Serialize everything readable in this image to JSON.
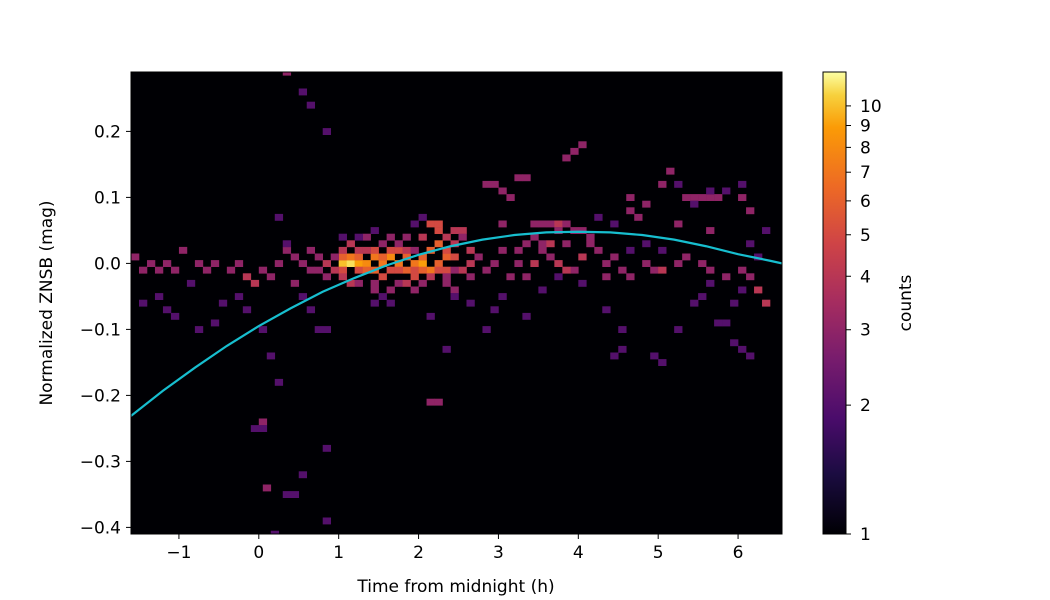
{
  "chart_data": {
    "type": "heatmap",
    "title": "",
    "xlabel": "Time from midnight (h)",
    "ylabel": "Normalized ZNSB (mag)",
    "xlim": [
      -1.6,
      6.55
    ],
    "ylim": [
      -0.41,
      0.29
    ],
    "x_ticks": [
      -1,
      0,
      1,
      2,
      3,
      4,
      5,
      6
    ],
    "x_tick_labels": [
      "−1",
      "0",
      "1",
      "2",
      "3",
      "4",
      "5",
      "6"
    ],
    "y_ticks": [
      -0.4,
      -0.3,
      -0.2,
      -0.1,
      0.0,
      0.1,
      0.2
    ],
    "y_tick_labels": [
      "−0.4",
      "−0.3",
      "−0.2",
      "−0.1",
      "0.0",
      "0.1",
      "0.2"
    ],
    "background_color": "#000004",
    "colormap": "inferno",
    "colorbar": {
      "label": "counts",
      "scale": "log",
      "range": [
        1,
        12
      ],
      "ticks": [
        1,
        2,
        3,
        4,
        5,
        6,
        7,
        8,
        9,
        10
      ],
      "tick_labels": [
        "1",
        "2",
        "3",
        "4",
        "5",
        "6",
        "7",
        "8",
        "9",
        "10"
      ]
    },
    "bin_size": {
      "x": 0.1,
      "y": 0.01
    },
    "bins": [
      [
        1.0,
        0.0,
        10
      ],
      [
        1.1,
        0.0,
        11
      ],
      [
        1.2,
        0.0,
        9
      ],
      [
        1.3,
        0.0,
        8
      ],
      [
        1.4,
        -0.01,
        6
      ],
      [
        1.5,
        0.0,
        7
      ],
      [
        1.6,
        0.01,
        8
      ],
      [
        1.7,
        0.0,
        7
      ],
      [
        1.8,
        -0.01,
        6
      ],
      [
        1.9,
        0.0,
        7
      ],
      [
        2.0,
        0.0,
        9
      ],
      [
        2.1,
        -0.01,
        7
      ],
      [
        2.2,
        0.0,
        6
      ],
      [
        2.3,
        0.01,
        6
      ],
      [
        1.0,
        0.01,
        6
      ],
      [
        1.1,
        0.01,
        7
      ],
      [
        1.2,
        0.01,
        6
      ],
      [
        1.4,
        0.01,
        7
      ],
      [
        1.5,
        0.01,
        6
      ],
      [
        1.8,
        0.01,
        6
      ],
      [
        2.0,
        0.01,
        6
      ],
      [
        2.1,
        0.02,
        6
      ],
      [
        2.3,
        0.02,
        5
      ],
      [
        2.4,
        0.01,
        5
      ],
      [
        2.2,
        0.03,
        6
      ],
      [
        1.0,
        -0.01,
        5
      ],
      [
        1.2,
        -0.01,
        5
      ],
      [
        1.3,
        -0.01,
        6
      ],
      [
        1.6,
        -0.01,
        5
      ],
      [
        1.7,
        -0.01,
        5
      ],
      [
        1.9,
        -0.01,
        5
      ],
      [
        2.0,
        -0.01,
        6
      ],
      [
        2.2,
        -0.01,
        5
      ],
      [
        2.3,
        -0.01,
        5
      ],
      [
        1.5,
        -0.02,
        5
      ],
      [
        1.9,
        -0.02,
        5
      ],
      [
        2.1,
        -0.02,
        4
      ],
      [
        1.6,
        0.02,
        5
      ],
      [
        1.4,
        0.02,
        5
      ],
      [
        1.3,
        0.02,
        4
      ],
      [
        1.7,
        0.02,
        5
      ],
      [
        2.1,
        0.06,
        5
      ],
      [
        2.2,
        0.06,
        5
      ],
      [
        2.2,
        0.05,
        5
      ],
      [
        2.4,
        0.05,
        4
      ],
      [
        2.5,
        0.05,
        4
      ],
      [
        2.3,
        0.04,
        4
      ],
      [
        2.5,
        0.04,
        3
      ],
      [
        2.0,
        0.04,
        4
      ],
      [
        2.4,
        0.03,
        4
      ],
      [
        1.1,
        0.03,
        4
      ],
      [
        1.2,
        0.02,
        4
      ],
      [
        1.0,
        0.02,
        4
      ],
      [
        1.8,
        0.02,
        4
      ],
      [
        1.9,
        0.02,
        3
      ],
      [
        1.5,
        0.03,
        3
      ],
      [
        2.6,
        0.02,
        4
      ],
      [
        2.6,
        0.0,
        4
      ],
      [
        2.7,
        0.01,
        3
      ],
      [
        2.5,
        -0.01,
        4
      ],
      [
        2.6,
        -0.02,
        3
      ],
      [
        0.8,
        0.0,
        4
      ],
      [
        0.9,
        -0.01,
        4
      ],
      [
        0.9,
        0.01,
        3
      ],
      [
        0.7,
        -0.01,
        3
      ],
      [
        0.8,
        -0.02,
        3
      ],
      [
        1.0,
        -0.02,
        4
      ],
      [
        1.1,
        -0.03,
        4
      ],
      [
        1.2,
        -0.03,
        3
      ],
      [
        1.4,
        -0.03,
        3
      ],
      [
        1.7,
        -0.03,
        3
      ],
      [
        1.8,
        -0.03,
        4
      ],
      [
        2.0,
        -0.03,
        3
      ],
      [
        1.4,
        -0.04,
        3
      ],
      [
        1.6,
        -0.04,
        3
      ],
      [
        1.9,
        -0.04,
        3
      ],
      [
        2.3,
        -0.02,
        3
      ],
      [
        2.4,
        -0.01,
        3
      ],
      [
        2.3,
        -0.03,
        3
      ],
      [
        2.4,
        -0.04,
        3
      ],
      [
        1.6,
        0.04,
        3
      ],
      [
        1.3,
        0.04,
        3
      ],
      [
        1.7,
        0.03,
        3
      ],
      [
        1.8,
        0.04,
        3
      ],
      [
        3.0,
        0.06,
        3
      ],
      [
        3.4,
        0.06,
        3
      ],
      [
        3.5,
        0.06,
        3
      ],
      [
        3.6,
        0.06,
        3
      ],
      [
        3.7,
        0.06,
        4
      ],
      [
        3.8,
        0.06,
        3
      ],
      [
        3.7,
        0.05,
        3
      ],
      [
        3.9,
        0.05,
        3
      ],
      [
        4.0,
        0.05,
        3
      ],
      [
        3.3,
        0.03,
        3
      ],
      [
        3.4,
        0.04,
        3
      ],
      [
        3.5,
        0.03,
        3
      ],
      [
        3.6,
        0.03,
        4
      ],
      [
        3.8,
        0.03,
        3
      ],
      [
        3.2,
        0.0,
        3
      ],
      [
        3.4,
        0.0,
        4
      ],
      [
        3.5,
        0.02,
        3
      ],
      [
        3.6,
        0.01,
        3
      ],
      [
        3.7,
        0.0,
        4
      ],
      [
        3.9,
        -0.01,
        3
      ],
      [
        4.0,
        0.01,
        4
      ],
      [
        4.1,
        0.03,
        3
      ],
      [
        3.1,
        -0.02,
        3
      ],
      [
        3.3,
        -0.02,
        3
      ],
      [
        3.0,
        0.02,
        3
      ],
      [
        2.9,
        0.0,
        3
      ],
      [
        2.8,
        -0.01,
        3
      ],
      [
        3.2,
        0.02,
        3
      ],
      [
        3.8,
        -0.01,
        4
      ],
      [
        4.2,
        0.02,
        3
      ],
      [
        4.3,
        0.0,
        3
      ],
      [
        4.4,
        0.01,
        3
      ],
      [
        4.5,
        -0.01,
        3
      ],
      [
        4.6,
        -0.02,
        3
      ],
      [
        4.8,
        0.0,
        3
      ],
      [
        4.9,
        -0.01,
        3
      ],
      [
        5.0,
        -0.01,
        4
      ],
      [
        5.2,
        0.0,
        3
      ],
      [
        5.3,
        0.01,
        3
      ],
      [
        5.5,
        0.0,
        3
      ],
      [
        5.6,
        -0.01,
        3
      ],
      [
        5.8,
        -0.02,
        3
      ],
      [
        6.0,
        -0.01,
        3
      ],
      [
        6.1,
        -0.02,
        3
      ],
      [
        6.2,
        -0.04,
        4
      ],
      [
        6.3,
        -0.06,
        4
      ],
      [
        4.3,
        -0.02,
        3
      ],
      [
        4.1,
        0.04,
        3
      ],
      [
        2.8,
        0.12,
        3
      ],
      [
        2.9,
        0.12,
        3
      ],
      [
        3.2,
        0.13,
        3
      ],
      [
        3.3,
        0.13,
        3
      ],
      [
        3.0,
        0.11,
        3
      ],
      [
        3.1,
        0.1,
        3
      ],
      [
        3.9,
        0.17,
        3
      ],
      [
        4.0,
        0.18,
        3
      ],
      [
        3.8,
        0.16,
        3
      ],
      [
        4.6,
        0.1,
        3
      ],
      [
        4.8,
        0.09,
        3
      ],
      [
        5.0,
        0.12,
        3
      ],
      [
        4.6,
        0.08,
        3
      ],
      [
        4.7,
        0.07,
        3
      ],
      [
        5.1,
        0.14,
        3
      ],
      [
        5.3,
        0.1,
        3
      ],
      [
        5.4,
        0.1,
        3
      ],
      [
        5.5,
        0.1,
        3
      ],
      [
        5.6,
        0.1,
        3
      ],
      [
        5.7,
        0.1,
        3
      ],
      [
        6.0,
        0.1,
        3
      ],
      [
        6.1,
        0.08,
        3
      ],
      [
        5.2,
        0.06,
        3
      ],
      [
        5.6,
        0.05,
        3
      ],
      [
        -1.6,
        0.01,
        3
      ],
      [
        -1.5,
        -0.01,
        3
      ],
      [
        -1.4,
        0.0,
        3
      ],
      [
        -1.3,
        -0.01,
        3
      ],
      [
        -1.2,
        0.0,
        3
      ],
      [
        -1.1,
        -0.01,
        3
      ],
      [
        -1.0,
        0.02,
        3
      ],
      [
        -0.8,
        0.0,
        3
      ],
      [
        -0.7,
        -0.01,
        3
      ],
      [
        -0.6,
        0.0,
        3
      ],
      [
        -0.4,
        -0.01,
        3
      ],
      [
        -0.3,
        0.0,
        3
      ],
      [
        -0.2,
        -0.02,
        4
      ],
      [
        -0.1,
        -0.03,
        4
      ],
      [
        0.0,
        -0.01,
        3
      ],
      [
        0.1,
        -0.02,
        3
      ],
      [
        0.2,
        0.0,
        3
      ],
      [
        0.3,
        0.02,
        3
      ],
      [
        0.4,
        0.01,
        3
      ],
      [
        0.5,
        0.0,
        3
      ],
      [
        0.6,
        -0.01,
        3
      ],
      [
        0.6,
        0.02,
        3
      ],
      [
        0.7,
        0.01,
        3
      ],
      [
        0.4,
        -0.03,
        3
      ],
      [
        -1.5,
        -0.06,
        2
      ],
      [
        -1.3,
        -0.05,
        2
      ],
      [
        -1.2,
        -0.07,
        2
      ],
      [
        -1.1,
        -0.08,
        2
      ],
      [
        -0.9,
        -0.03,
        2
      ],
      [
        -0.8,
        -0.1,
        2
      ],
      [
        -0.6,
        -0.09,
        2
      ],
      [
        -0.5,
        -0.06,
        2
      ],
      [
        -0.3,
        -0.05,
        2
      ],
      [
        -0.2,
        -0.07,
        2
      ],
      [
        0.0,
        -0.1,
        2
      ],
      [
        0.1,
        -0.14,
        2
      ],
      [
        0.2,
        0.07,
        2
      ],
      [
        0.3,
        0.03,
        2
      ],
      [
        0.5,
        -0.05,
        2
      ],
      [
        0.6,
        -0.07,
        2
      ],
      [
        0.7,
        -0.1,
        2
      ],
      [
        0.8,
        -0.1,
        2
      ],
      [
        0.2,
        -0.18,
        2
      ],
      [
        0.5,
        -0.32,
        2
      ],
      [
        0.8,
        -0.28,
        2
      ],
      [
        0.8,
        -0.39,
        2
      ],
      [
        0.4,
        -0.35,
        2
      ],
      [
        0.3,
        -0.35,
        2
      ],
      [
        0.0,
        -0.24,
        3
      ],
      [
        0.0,
        -0.25,
        2
      ],
      [
        -0.1,
        -0.25,
        2
      ],
      [
        0.05,
        -0.34,
        3
      ],
      [
        0.15,
        -0.41,
        2
      ],
      [
        0.3,
        0.29,
        3
      ],
      [
        0.5,
        0.26,
        2
      ],
      [
        0.6,
        0.24,
        2
      ],
      [
        0.8,
        0.2,
        2
      ],
      [
        1.4,
        -0.06,
        2
      ],
      [
        1.5,
        -0.05,
        2
      ],
      [
        1.6,
        -0.06,
        2
      ],
      [
        1.0,
        0.04,
        2
      ],
      [
        1.2,
        0.04,
        2
      ],
      [
        1.4,
        0.05,
        2
      ],
      [
        1.9,
        0.06,
        2
      ],
      [
        2.0,
        0.07,
        2
      ],
      [
        2.1,
        -0.08,
        2
      ],
      [
        2.3,
        -0.13,
        2
      ],
      [
        2.2,
        -0.21,
        3
      ],
      [
        2.1,
        -0.21,
        3
      ],
      [
        2.4,
        -0.05,
        2
      ],
      [
        2.6,
        -0.06,
        2
      ],
      [
        2.8,
        -0.1,
        2
      ],
      [
        2.9,
        -0.07,
        2
      ],
      [
        3.0,
        -0.05,
        2
      ],
      [
        3.3,
        -0.08,
        2
      ],
      [
        3.5,
        -0.04,
        2
      ],
      [
        3.7,
        -0.02,
        2
      ],
      [
        4.0,
        -0.03,
        2
      ],
      [
        4.3,
        -0.07,
        2
      ],
      [
        4.5,
        -0.1,
        2
      ],
      [
        4.4,
        -0.14,
        2
      ],
      [
        4.5,
        -0.13,
        2
      ],
      [
        4.9,
        -0.14,
        2
      ],
      [
        5.0,
        -0.15,
        2
      ],
      [
        5.2,
        -0.1,
        2
      ],
      [
        5.4,
        -0.06,
        2
      ],
      [
        5.5,
        -0.05,
        2
      ],
      [
        5.6,
        -0.03,
        2
      ],
      [
        5.7,
        -0.09,
        2
      ],
      [
        5.8,
        -0.09,
        2
      ],
      [
        5.9,
        -0.06,
        2
      ],
      [
        5.9,
        -0.12,
        2
      ],
      [
        6.0,
        -0.13,
        2
      ],
      [
        6.1,
        -0.14,
        2
      ],
      [
        6.0,
        -0.04,
        2
      ],
      [
        6.2,
        0.01,
        2
      ],
      [
        6.3,
        0.05,
        2
      ],
      [
        6.1,
        0.03,
        2
      ],
      [
        6.0,
        0.12,
        2
      ],
      [
        5.8,
        0.11,
        2
      ],
      [
        5.6,
        0.11,
        2
      ],
      [
        5.4,
        0.09,
        2
      ],
      [
        5.2,
        0.12,
        2
      ],
      [
        5.0,
        0.02,
        2
      ],
      [
        4.8,
        0.03,
        2
      ],
      [
        4.6,
        0.02,
        2
      ],
      [
        4.4,
        0.06,
        2
      ],
      [
        4.2,
        0.07,
        2
      ]
    ],
    "series": [
      {
        "type": "line",
        "color": "#17becf",
        "x": [
          -1.6,
          -1.2,
          -0.8,
          -0.4,
          0.0,
          0.4,
          0.8,
          1.2,
          1.6,
          2.0,
          2.4,
          2.8,
          3.2,
          3.6,
          4.0,
          4.4,
          4.8,
          5.2,
          5.6,
          6.0,
          6.4,
          6.55
        ],
        "y": [
          -0.231,
          -0.193,
          -0.158,
          -0.125,
          -0.095,
          -0.068,
          -0.043,
          -0.022,
          -0.003,
          0.013,
          0.026,
          0.036,
          0.043,
          0.047,
          0.048,
          0.047,
          0.043,
          0.036,
          0.026,
          0.014,
          0.004,
          0.0
        ]
      }
    ]
  }
}
